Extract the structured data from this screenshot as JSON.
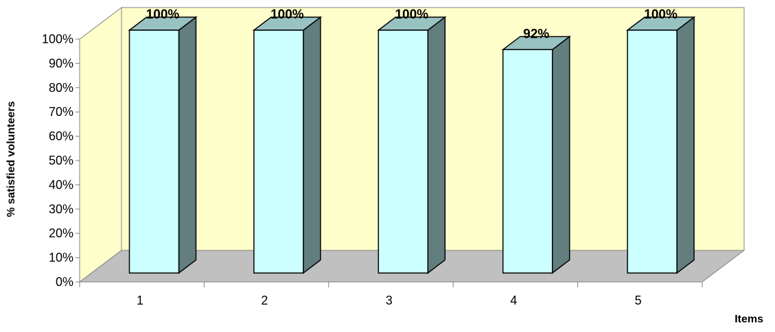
{
  "chart_data": {
    "type": "bar",
    "style": "3d-column",
    "categories": [
      "1",
      "2",
      "3",
      "4",
      "5"
    ],
    "values": [
      100,
      100,
      100,
      92,
      100
    ],
    "data_labels": [
      "100%",
      "100%",
      "100%",
      "92%",
      "100%"
    ],
    "xlabel": "Items",
    "ylabel": "% satisfied volunteers",
    "ylim": [
      0,
      100
    ],
    "yticks": [
      "0%",
      "10%",
      "20%",
      "30%",
      "40%",
      "50%",
      "60%",
      "70%",
      "80%",
      "90%",
      "100%"
    ],
    "legend": "none",
    "grid": false,
    "colors": {
      "bar_front": "#ccffff",
      "bar_side": "#627e7e",
      "bar_top": "#99c2c2",
      "back_wall": "#ffffcc",
      "floor": "#c0c0c0",
      "axis": "#808080",
      "bar_edge": "#000000"
    }
  }
}
